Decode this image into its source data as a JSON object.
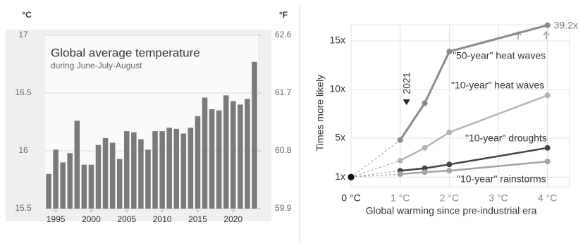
{
  "chart_data": [
    {
      "type": "bar",
      "title": "Global average temperature",
      "subtitle": "during June-July-August",
      "ylabel": "°C",
      "y2label": "°F",
      "x": [
        1994,
        1995,
        1996,
        1997,
        1998,
        1999,
        2000,
        2001,
        2002,
        2003,
        2004,
        2005,
        2006,
        2007,
        2008,
        2009,
        2010,
        2011,
        2012,
        2013,
        2014,
        2015,
        2016,
        2017,
        2018,
        2019,
        2020,
        2021,
        2022,
        2023
      ],
      "values": [
        15.8,
        16.01,
        15.9,
        15.98,
        16.26,
        15.88,
        15.88,
        16.05,
        16.11,
        16.07,
        15.93,
        16.17,
        16.16,
        16.1,
        16.01,
        16.17,
        16.17,
        16.2,
        16.19,
        16.15,
        16.2,
        16.3,
        16.46,
        16.36,
        16.35,
        16.48,
        16.43,
        16.4,
        16.45,
        16.77
      ],
      "color": "#7a7a7a",
      "xlim": [
        1993.5,
        2023.5
      ],
      "xticks": [
        1995,
        2000,
        2005,
        2010,
        2015,
        2020
      ],
      "ylim": [
        15.5,
        17
      ],
      "yticks": [
        15.5,
        16,
        16.5,
        17
      ],
      "y2lim": [
        59.9,
        62.6
      ],
      "y2ticks": [
        59.9,
        60.8,
        61.7,
        62.6
      ],
      "grid": true
    },
    {
      "type": "line",
      "xlabel": "Global warming since pre-industrial era",
      "ylabel": "Times more likely",
      "annotation": "2021",
      "x": [
        0,
        1,
        1.5,
        2,
        4
      ],
      "xlim": [
        0,
        4.45
      ],
      "xticks": [
        {
          "value": 0,
          "label": "0 °C"
        },
        {
          "value": 1,
          "label": "1 °C"
        },
        {
          "value": 2,
          "label": "2 °C"
        },
        {
          "value": 3,
          "label": "3 °C"
        },
        {
          "value": 4,
          "label": "4 °C"
        }
      ],
      "ylim": [
        0,
        40
      ],
      "yticks": [
        {
          "value": 1,
          "label": "1x"
        },
        {
          "value": 5,
          "label": "5x"
        },
        {
          "value": 10,
          "label": "10x"
        },
        {
          "value": 15,
          "label": "15x"
        }
      ],
      "grid": true,
      "series": [
        {
          "name": "\"50-year\" heat waves",
          "color": "#8a8a8a",
          "values": [
            1,
            4.8,
            8.6,
            13.9,
            39.2
          ],
          "value_labels": [
            null,
            null,
            null,
            null,
            "39.2x"
          ]
        },
        {
          "name": "\"10-year\" heat waves",
          "color": "#b3b3b3",
          "values": [
            1,
            2.7,
            4.0,
            5.6,
            9.4
          ]
        },
        {
          "name": "\"10-year\" droughts",
          "color": "#444444",
          "values": [
            1,
            1.65,
            1.9,
            2.3,
            4.0
          ]
        },
        {
          "name": "\"10-year\" rainstorms",
          "color": "#a3a3a3",
          "values": [
            1,
            1.3,
            1.5,
            1.65,
            2.6
          ]
        }
      ]
    }
  ]
}
